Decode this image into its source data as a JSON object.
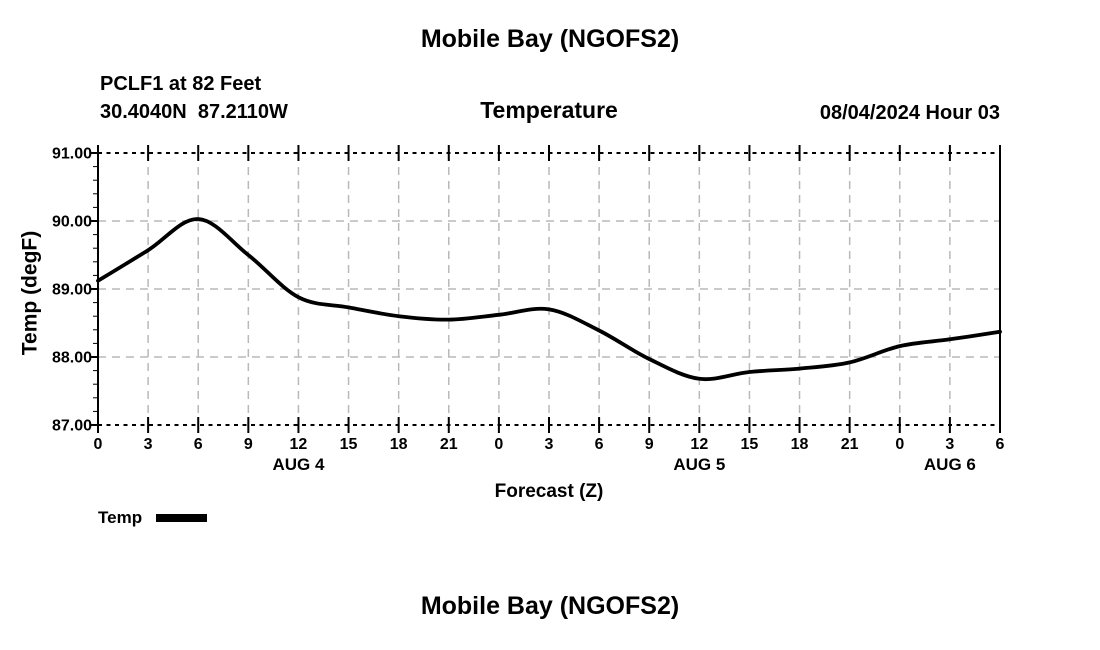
{
  "header": {
    "title": "Mobile Bay (NGOFS2)",
    "station_line1": "PCLF1 at 82 Feet",
    "station_line2": "30.4040N  87.2110W",
    "datetime": "08/04/2024 Hour 03"
  },
  "legend": {
    "label": "Temp"
  },
  "footer": {
    "next_title": "Mobile Bay (NGOFS2)"
  },
  "chart_data": {
    "type": "line",
    "title": "Temperature",
    "xlabel": "Forecast (Z)",
    "ylabel": "Temp (degF)",
    "x": [
      0,
      3,
      6,
      9,
      12,
      15,
      18,
      21,
      24,
      27,
      30,
      33,
      36,
      39,
      42,
      45,
      48,
      51,
      54
    ],
    "series": [
      {
        "name": "Temp",
        "values": [
          89.12,
          89.57,
          90.03,
          89.5,
          88.88,
          88.73,
          88.6,
          88.55,
          88.62,
          88.7,
          88.39,
          87.97,
          87.68,
          87.78,
          87.83,
          87.92,
          88.16,
          88.26,
          88.37
        ]
      }
    ],
    "xlim": [
      0,
      54
    ],
    "ylim": [
      87,
      91
    ],
    "x_tick_hours": [
      0,
      3,
      6,
      9,
      12,
      15,
      18,
      21,
      24,
      27,
      30,
      33,
      36,
      39,
      42,
      45,
      48,
      51,
      54
    ],
    "x_tick_labels": [
      "0",
      "3",
      "6",
      "9",
      "12",
      "15",
      "18",
      "21",
      "0",
      "3",
      "6",
      "9",
      "12",
      "15",
      "18",
      "21",
      "0",
      "3",
      "6"
    ],
    "day_labels": [
      {
        "label": "AUG 4",
        "hour": 12
      },
      {
        "label": "AUG 5",
        "hour": 36
      },
      {
        "label": "AUG 6",
        "hour": 51
      }
    ],
    "y_ticks": [
      87,
      88,
      89,
      90,
      91
    ],
    "y_tick_labels": [
      "87.00",
      "88.00",
      "89.00",
      "90.00",
      "91.00"
    ],
    "y_minor_step": 0.2,
    "grid": true,
    "legend_position": "bottom-left",
    "colors": {
      "line": "#000000",
      "grid": "#b9b9b9",
      "text": "#000000",
      "background": "#ffffff"
    }
  }
}
